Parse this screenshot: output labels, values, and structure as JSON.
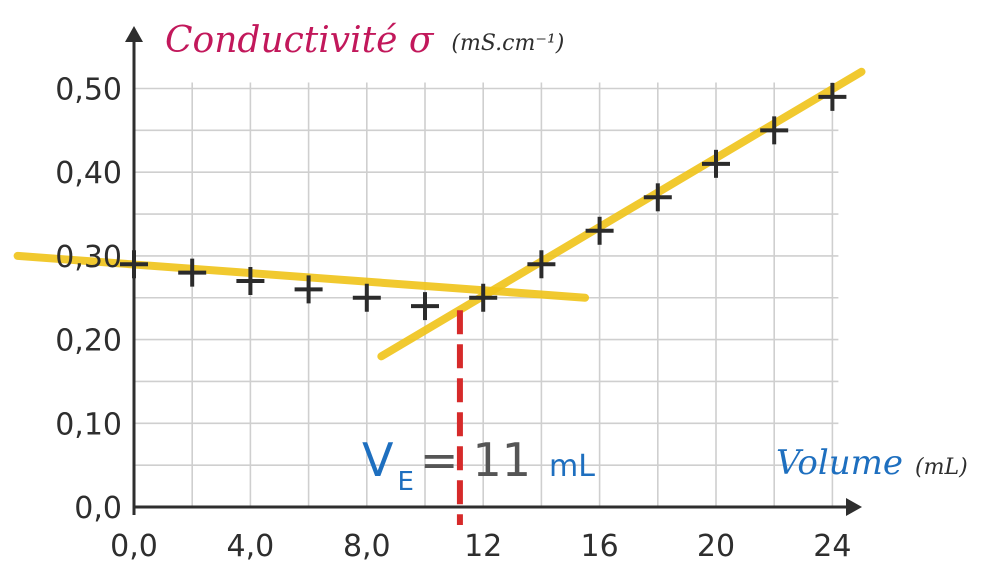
{
  "chart_data": {
    "type": "scatter",
    "title": "",
    "ylabel": "Conductivité σ",
    "yunit": "(mS.cm⁻¹)",
    "xlabel": "Volume",
    "xunit": "(mL)",
    "xlim": [
      0,
      24
    ],
    "ylim": [
      0,
      0.5
    ],
    "x_ticks": [
      "0,0",
      "4,0",
      "8,0",
      "12",
      "16",
      "20",
      "24"
    ],
    "x_tick_values": [
      0,
      4,
      8,
      12,
      16,
      20,
      24
    ],
    "y_ticks": [
      "0,0",
      "0,10",
      "0,20",
      "0,30",
      "0,40",
      "0,50"
    ],
    "y_tick_values": [
      0,
      0.1,
      0.2,
      0.3,
      0.4,
      0.5
    ],
    "grid": true,
    "series": [
      {
        "x": [
          0,
          2,
          4,
          6,
          8,
          10,
          12,
          14,
          16,
          18,
          20,
          22,
          24
        ],
        "y": [
          0.29,
          0.28,
          0.27,
          0.26,
          0.25,
          0.24,
          0.25,
          0.29,
          0.33,
          0.37,
          0.41,
          0.45,
          0.49
        ]
      }
    ],
    "fit_lines": [
      {
        "from": [
          -4,
          0.3
        ],
        "to": [
          15.5,
          0.25
        ]
      },
      {
        "from": [
          8.5,
          0.18
        ],
        "to": [
          25,
          0.52
        ]
      }
    ],
    "equivalence": {
      "x": 11.2,
      "y": 0.235
    },
    "annotation": {
      "symbol": "V",
      "subscript": "E",
      "equals": "=",
      "value": "11",
      "unit": "mL"
    },
    "colors": {
      "fit": "#f0c419",
      "marker": "#2b2b2b",
      "grid": "#cfcfcf",
      "axis": "#2e2e2e",
      "dashed": "#d62a2a",
      "ylabel": "#c2185b",
      "xlabel": "#1e6fbf"
    }
  }
}
